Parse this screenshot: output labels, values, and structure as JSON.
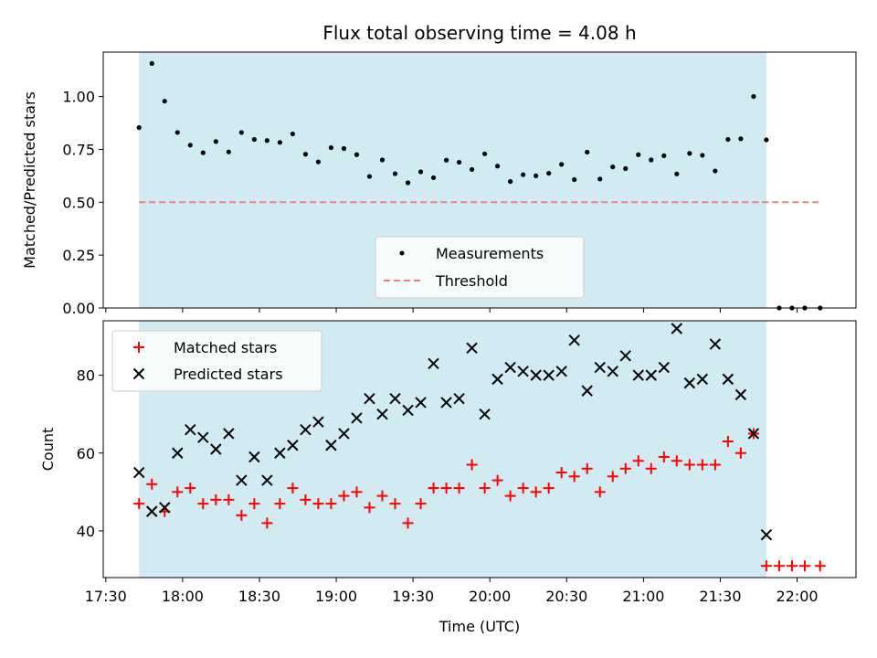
{
  "chart_data": [
    {
      "type": "scatter",
      "title": "Flux total observing time = 4.08 h",
      "xlabel": "",
      "ylabel": "Matched/Predicted stars",
      "ylim": [
        0,
        1.21
      ],
      "xlim": [
        "17:29",
        "22:23"
      ],
      "shaded_span": [
        "17:43",
        "21:48"
      ],
      "shade_color": "#add8e6",
      "yticks": [
        "0.00",
        "0.25",
        "0.50",
        "0.75",
        "1.00"
      ],
      "legend": {
        "placement": "lower center",
        "entries": [
          "Measurements",
          "Threshold"
        ]
      },
      "threshold": {
        "name": "Threshold",
        "value": 0.5,
        "x_range": [
          "17:43",
          "22:09"
        ],
        "color": "#f08080",
        "style": "dashed"
      },
      "series": [
        {
          "name": "Measurements",
          "color": "#000000",
          "points": [
            [
              "17:43",
              0.853
            ],
            [
              "17:48",
              1.156
            ],
            [
              "17:53",
              0.978
            ],
            [
              "17:58",
              0.83
            ],
            [
              "18:03",
              0.77
            ],
            [
              "18:08",
              0.734
            ],
            [
              "18:13",
              0.787
            ],
            [
              "18:18",
              0.738
            ],
            [
              "18:23",
              0.83
            ],
            [
              "18:28",
              0.797
            ],
            [
              "18:33",
              0.792
            ],
            [
              "18:38",
              0.783
            ],
            [
              "18:43",
              0.823
            ],
            [
              "18:48",
              0.727
            ],
            [
              "18:53",
              0.691
            ],
            [
              "18:58",
              0.758
            ],
            [
              "19:03",
              0.754
            ],
            [
              "19:08",
              0.725
            ],
            [
              "19:13",
              0.622
            ],
            [
              "19:18",
              0.7
            ],
            [
              "19:23",
              0.635
            ],
            [
              "19:28",
              0.592
            ],
            [
              "19:33",
              0.644
            ],
            [
              "19:38",
              0.616
            ],
            [
              "19:43",
              0.699
            ],
            [
              "19:48",
              0.689
            ],
            [
              "19:53",
              0.655
            ],
            [
              "19:58",
              0.729
            ],
            [
              "20:03",
              0.671
            ],
            [
              "20:08",
              0.598
            ],
            [
              "20:13",
              0.63
            ],
            [
              "20:18",
              0.625
            ],
            [
              "20:23",
              0.637
            ],
            [
              "20:28",
              0.679
            ],
            [
              "20:33",
              0.607
            ],
            [
              "20:38",
              0.737
            ],
            [
              "20:43",
              0.61
            ],
            [
              "20:48",
              0.667
            ],
            [
              "20:53",
              0.659
            ],
            [
              "20:58",
              0.725
            ],
            [
              "21:03",
              0.7
            ],
            [
              "21:08",
              0.72
            ],
            [
              "21:13",
              0.634
            ],
            [
              "21:18",
              0.731
            ],
            [
              "21:23",
              0.722
            ],
            [
              "21:28",
              0.648
            ],
            [
              "21:33",
              0.797
            ],
            [
              "21:38",
              0.8
            ],
            [
              "21:43",
              1.0
            ],
            [
              "21:48",
              0.795
            ],
            [
              "21:53",
              0.0
            ],
            [
              "21:58",
              0.0
            ],
            [
              "22:03",
              0.0
            ],
            [
              "22:09",
              0.0
            ]
          ]
        }
      ]
    },
    {
      "type": "scatter",
      "title": "",
      "xlabel": "Time (UTC)",
      "ylabel": "Count",
      "ylim": [
        28,
        94
      ],
      "xlim": [
        "17:29",
        "22:23"
      ],
      "shaded_span": [
        "17:43",
        "21:48"
      ],
      "shade_color": "#add8e6",
      "xticks": [
        "17:30",
        "18:00",
        "18:30",
        "19:00",
        "19:30",
        "20:00",
        "20:30",
        "21:00",
        "21:30",
        "22:00"
      ],
      "yticks": [
        "40",
        "60",
        "80"
      ],
      "legend": {
        "placement": "upper left",
        "entries": [
          "Matched stars",
          "Predicted stars"
        ]
      },
      "series": [
        {
          "name": "Matched stars",
          "marker": "+",
          "color": "#ff0000",
          "points": [
            [
              "17:43",
              47
            ],
            [
              "17:48",
              52
            ],
            [
              "17:53",
              45
            ],
            [
              "17:58",
              50
            ],
            [
              "18:03",
              51
            ],
            [
              "18:08",
              47
            ],
            [
              "18:13",
              48
            ],
            [
              "18:18",
              48
            ],
            [
              "18:23",
              44
            ],
            [
              "18:28",
              47
            ],
            [
              "18:33",
              42
            ],
            [
              "18:38",
              47
            ],
            [
              "18:43",
              51
            ],
            [
              "18:48",
              48
            ],
            [
              "18:53",
              47
            ],
            [
              "18:58",
              47
            ],
            [
              "19:03",
              49
            ],
            [
              "19:08",
              50
            ],
            [
              "19:13",
              46
            ],
            [
              "19:18",
              49
            ],
            [
              "19:23",
              47
            ],
            [
              "19:28",
              42
            ],
            [
              "19:33",
              47
            ],
            [
              "19:38",
              51
            ],
            [
              "19:43",
              51
            ],
            [
              "19:48",
              51
            ],
            [
              "19:53",
              57
            ],
            [
              "19:58",
              51
            ],
            [
              "20:03",
              53
            ],
            [
              "20:08",
              49
            ],
            [
              "20:13",
              51
            ],
            [
              "20:18",
              50
            ],
            [
              "20:23",
              51
            ],
            [
              "20:28",
              55
            ],
            [
              "20:33",
              54
            ],
            [
              "20:38",
              56
            ],
            [
              "20:43",
              50
            ],
            [
              "20:48",
              54
            ],
            [
              "20:53",
              56
            ],
            [
              "20:58",
              58
            ],
            [
              "21:03",
              56
            ],
            [
              "21:08",
              59
            ],
            [
              "21:13",
              58
            ],
            [
              "21:18",
              57
            ],
            [
              "21:23",
              57
            ],
            [
              "21:28",
              57
            ],
            [
              "21:33",
              63
            ],
            [
              "21:38",
              60
            ],
            [
              "21:43",
              65
            ],
            [
              "21:48",
              31
            ],
            [
              "21:53",
              31
            ],
            [
              "21:58",
              31
            ],
            [
              "22:03",
              31
            ],
            [
              "22:09",
              31
            ]
          ]
        },
        {
          "name": "Predicted stars",
          "marker": "x",
          "color": "#000000",
          "points": [
            [
              "17:43",
              55
            ],
            [
              "17:48",
              45
            ],
            [
              "17:53",
              46
            ],
            [
              "17:58",
              60
            ],
            [
              "18:03",
              66
            ],
            [
              "18:08",
              64
            ],
            [
              "18:13",
              61
            ],
            [
              "18:18",
              65
            ],
            [
              "18:23",
              53
            ],
            [
              "18:28",
              59
            ],
            [
              "18:33",
              53
            ],
            [
              "18:38",
              60
            ],
            [
              "18:43",
              62
            ],
            [
              "18:48",
              66
            ],
            [
              "18:53",
              68
            ],
            [
              "18:58",
              62
            ],
            [
              "19:03",
              65
            ],
            [
              "19:08",
              69
            ],
            [
              "19:13",
              74
            ],
            [
              "19:18",
              70
            ],
            [
              "19:23",
              74
            ],
            [
              "19:28",
              71
            ],
            [
              "19:33",
              73
            ],
            [
              "19:38",
              83
            ],
            [
              "19:43",
              73
            ],
            [
              "19:48",
              74
            ],
            [
              "19:53",
              87
            ],
            [
              "19:58",
              70
            ],
            [
              "20:03",
              79
            ],
            [
              "20:08",
              82
            ],
            [
              "20:13",
              81
            ],
            [
              "20:18",
              80
            ],
            [
              "20:23",
              80
            ],
            [
              "20:28",
              81
            ],
            [
              "20:33",
              89
            ],
            [
              "20:38",
              76
            ],
            [
              "20:43",
              82
            ],
            [
              "20:48",
              81
            ],
            [
              "20:53",
              85
            ],
            [
              "20:58",
              80
            ],
            [
              "21:03",
              80
            ],
            [
              "21:08",
              82
            ],
            [
              "21:13",
              92
            ],
            [
              "21:18",
              78
            ],
            [
              "21:23",
              79
            ],
            [
              "21:28",
              88
            ],
            [
              "21:33",
              79
            ],
            [
              "21:38",
              75
            ],
            [
              "21:43",
              65
            ],
            [
              "21:48",
              39
            ]
          ]
        }
      ]
    }
  ]
}
